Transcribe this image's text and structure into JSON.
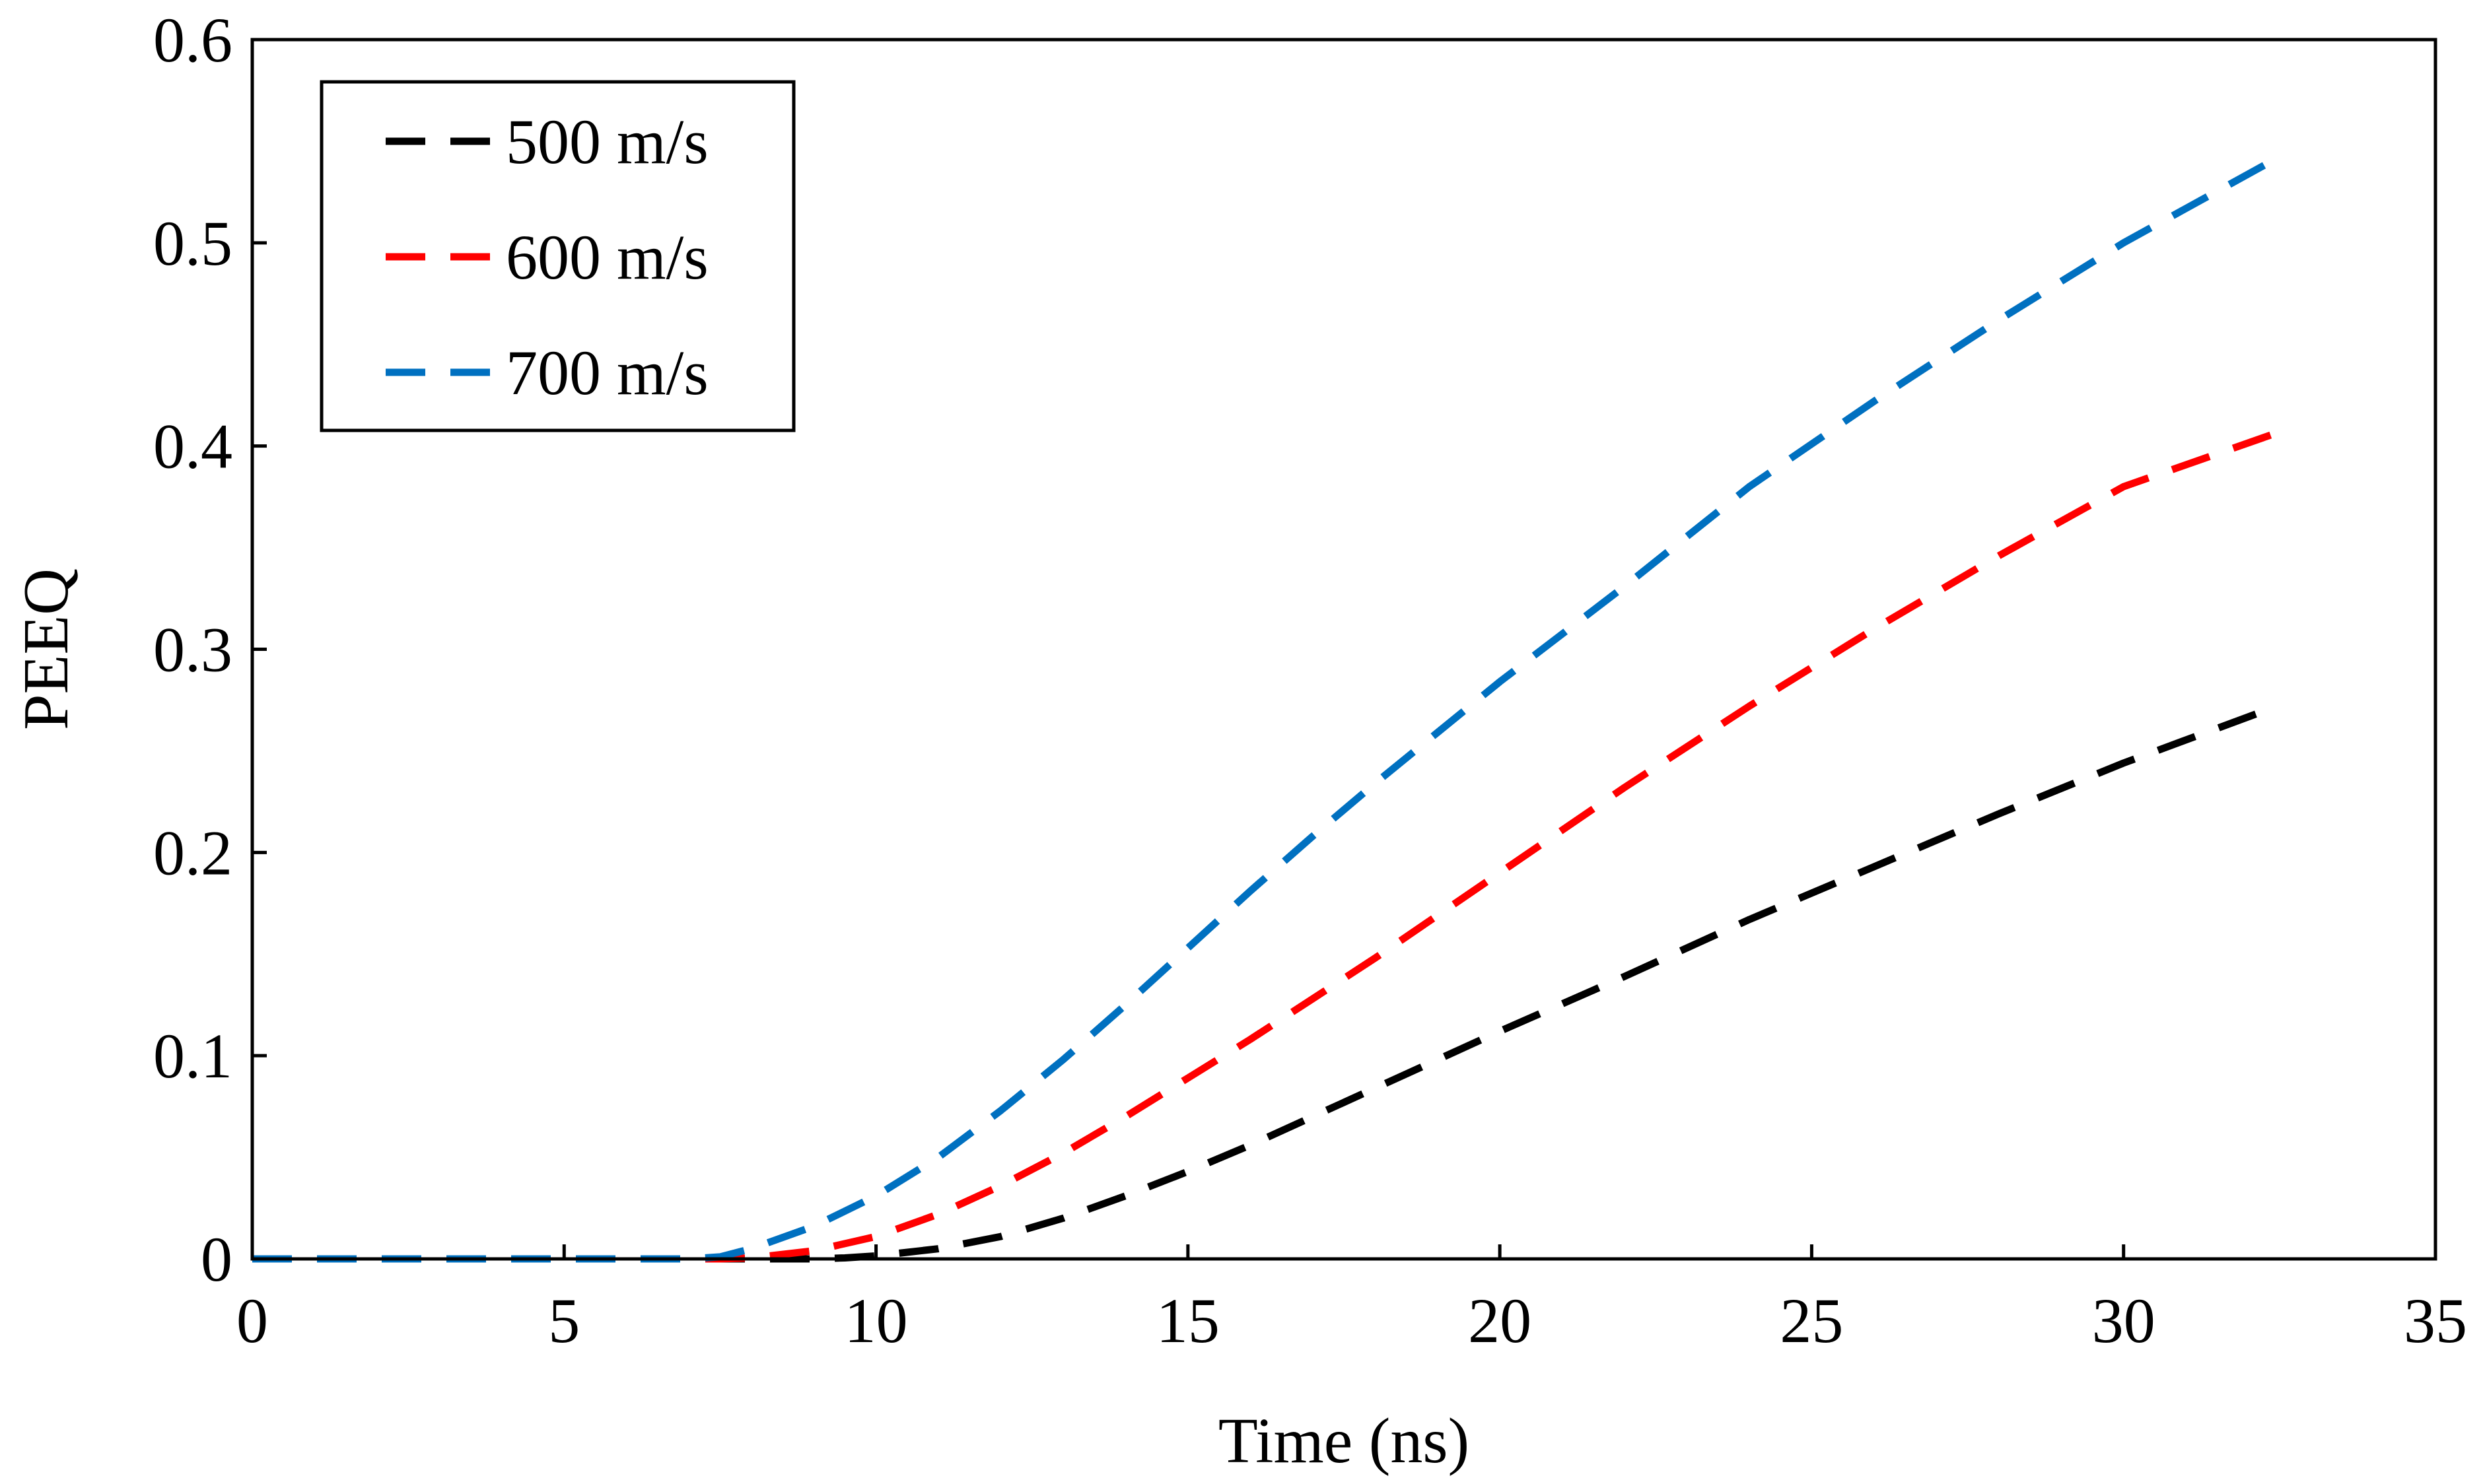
{
  "chart_data": {
    "type": "line",
    "title": "",
    "xlabel": "Time (ns)",
    "ylabel": "PEEQ",
    "xlim": [
      0,
      35
    ],
    "ylim": [
      0,
      0.6
    ],
    "xticks": [
      0,
      5,
      10,
      15,
      20,
      25,
      30,
      35
    ],
    "xtick_labels": [
      "0",
      "5",
      "10",
      "15",
      "20",
      "25",
      "30",
      "35"
    ],
    "yticks": [
      0,
      0.1,
      0.2,
      0.3,
      0.4,
      0.5,
      0.6
    ],
    "ytick_labels": [
      "0",
      "0.1",
      "0.2",
      "0.3",
      "0.4",
      "0.5",
      "0.6"
    ],
    "grid": false,
    "legend_position": "top-left",
    "series": [
      {
        "name": "500 m/s",
        "color": "#000000",
        "style": "dashed",
        "x": [
          0,
          2,
          4,
          6,
          8,
          9,
          9.5,
          10,
          11,
          12,
          13,
          14,
          15,
          16,
          17,
          18,
          19,
          20,
          22,
          24,
          26,
          28,
          30,
          32.2
        ],
        "y": [
          0,
          0,
          0,
          0,
          0,
          0,
          0.0005,
          0.0015,
          0.005,
          0.011,
          0.02,
          0.031,
          0.043,
          0.056,
          0.07,
          0.084,
          0.098,
          0.112,
          0.139,
          0.167,
          0.193,
          0.219,
          0.244,
          0.269
        ]
      },
      {
        "name": "600 m/s",
        "color": "#ff0000",
        "style": "dashed",
        "x": [
          0,
          2,
          4,
          6,
          7.5,
          8,
          9,
          10,
          11,
          12,
          13,
          14,
          15,
          16,
          17,
          18,
          19,
          20,
          22,
          24,
          26,
          28,
          30,
          32.6
        ],
        "y": [
          0,
          0,
          0,
          0,
          0,
          0.0005,
          0.004,
          0.011,
          0.022,
          0.036,
          0.052,
          0.07,
          0.089,
          0.108,
          0.128,
          0.148,
          0.169,
          0.19,
          0.232,
          0.272,
          0.31,
          0.346,
          0.38,
          0.408
        ]
      },
      {
        "name": "700 m/s",
        "color": "#0070c0",
        "style": "dashed",
        "x": [
          0,
          2,
          4,
          6,
          7,
          7.5,
          8,
          9,
          10,
          11,
          12,
          13,
          14,
          15,
          16,
          17,
          18,
          19,
          20,
          22,
          24,
          26,
          28,
          30,
          32.6
        ],
        "y": [
          0,
          0,
          0,
          0,
          0,
          0.001,
          0.005,
          0.016,
          0.031,
          0.05,
          0.073,
          0.098,
          0.125,
          0.153,
          0.181,
          0.208,
          0.234,
          0.259,
          0.284,
          0.331,
          0.38,
          0.422,
          0.462,
          0.5,
          0.544
        ]
      }
    ]
  }
}
